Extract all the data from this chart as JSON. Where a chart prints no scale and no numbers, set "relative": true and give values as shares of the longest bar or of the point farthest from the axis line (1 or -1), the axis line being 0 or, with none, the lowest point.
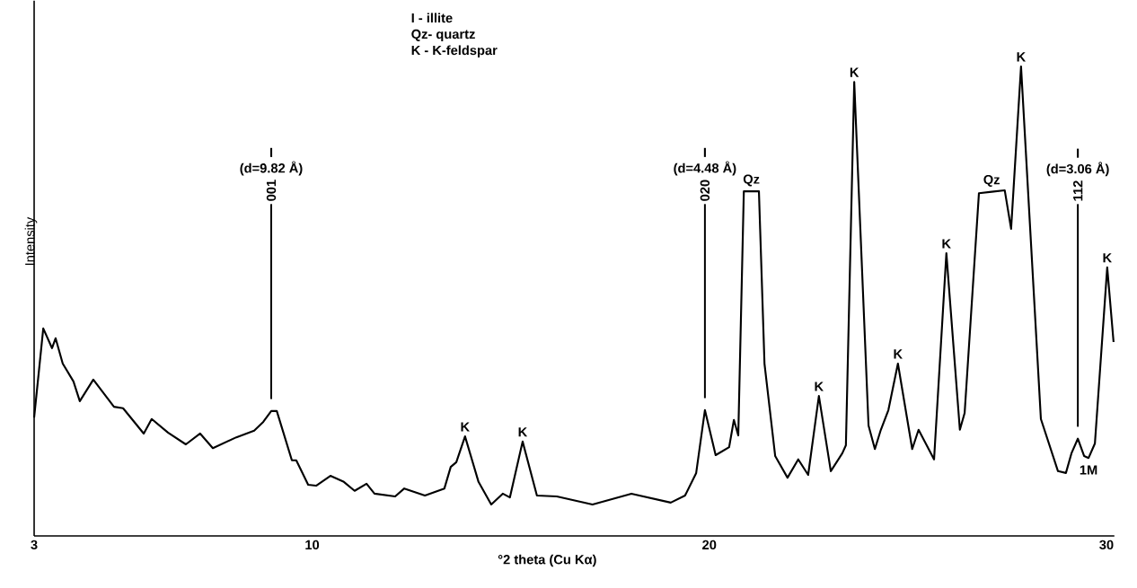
{
  "chart_data": {
    "type": "line",
    "relative": true,
    "xlabel": "°2 theta (Cu Kα)",
    "ylabel": "Intensity",
    "xlim": [
      3,
      30.2
    ],
    "xticks": [
      3,
      10,
      20,
      30
    ],
    "marker": "none",
    "line_style": "solid",
    "x": [
      3.0,
      3.23,
      3.45,
      3.54,
      3.72,
      3.99,
      4.15,
      4.49,
      5.01,
      5.24,
      5.76,
      5.96,
      6.37,
      6.82,
      7.18,
      7.5,
      8.09,
      8.54,
      8.77,
      8.97,
      9.11,
      9.49,
      9.6,
      9.9,
      10.1,
      10.46,
      10.8,
      11.07,
      11.37,
      11.57,
      12.09,
      12.32,
      12.84,
      13.33,
      13.49,
      13.63,
      13.85,
      14.19,
      14.51,
      14.8,
      14.98,
      15.3,
      15.66,
      16.16,
      17.06,
      18.04,
      19.03,
      19.39,
      19.67,
      19.89,
      20.16,
      20.5,
      20.62,
      20.73,
      20.87,
      21.06,
      21.25,
      21.39,
      21.66,
      21.97,
      22.24,
      22.49,
      22.76,
      23.06,
      23.35,
      23.44,
      23.65,
      24.01,
      24.17,
      24.32,
      24.51,
      24.75,
      25.11,
      25.27,
      25.66,
      25.97,
      26.31,
      26.43,
      26.79,
      27.11,
      27.44,
      27.6,
      27.85,
      28.35,
      28.78,
      28.98,
      29.12,
      29.28,
      29.44,
      29.55,
      29.71,
      30.02,
      30.18
    ],
    "series": [
      {
        "color": "#000000",
        "values": [
          0.252,
          0.442,
          0.4,
          0.421,
          0.367,
          0.329,
          0.287,
          0.333,
          0.275,
          0.272,
          0.218,
          0.249,
          0.22,
          0.195,
          0.218,
          0.187,
          0.21,
          0.224,
          0.243,
          0.266,
          0.266,
          0.161,
          0.161,
          0.109,
          0.107,
          0.128,
          0.115,
          0.096,
          0.111,
          0.09,
          0.084,
          0.101,
          0.086,
          0.101,
          0.147,
          0.157,
          0.212,
          0.115,
          0.067,
          0.09,
          0.082,
          0.201,
          0.086,
          0.084,
          0.067,
          0.09,
          0.071,
          0.086,
          0.134,
          0.268,
          0.172,
          0.189,
          0.247,
          0.214,
          0.734,
          0.734,
          0.734,
          0.367,
          0.17,
          0.124,
          0.163,
          0.13,
          0.298,
          0.138,
          0.176,
          0.193,
          0.967,
          0.235,
          0.185,
          0.226,
          0.268,
          0.367,
          0.185,
          0.226,
          0.163,
          0.602,
          0.226,
          0.262,
          0.73,
          0.733,
          0.736,
          0.654,
          1.0,
          0.249,
          0.138,
          0.134,
          0.176,
          0.207,
          0.17,
          0.166,
          0.197,
          0.572,
          0.413
        ]
      }
    ],
    "annotations": [
      {
        "text": "K",
        "x": 13.85,
        "y": 0.212
      },
      {
        "text": "K",
        "x": 15.3,
        "y": 0.201
      },
      {
        "text": "Qz",
        "x": 21.06,
        "y": 0.734
      },
      {
        "text": "K",
        "x": 22.76,
        "y": 0.298
      },
      {
        "text": "K",
        "x": 23.65,
        "y": 0.967
      },
      {
        "text": "K",
        "x": 24.75,
        "y": 0.367
      },
      {
        "text": "K",
        "x": 25.97,
        "y": 0.602
      },
      {
        "text": "Qz",
        "x": 27.11,
        "y": 0.733
      },
      {
        "text": "K",
        "x": 27.85,
        "y": 1.0
      },
      {
        "text": "K",
        "x": 30.02,
        "y": 0.572
      },
      {
        "text": "1M",
        "x": 29.55,
        "y": 0.166
      },
      "I",
      "(d=9.82 Å)",
      "001",
      "I",
      "(d=4.48 Å)",
      "020",
      "I",
      "(d=3.06 Å)",
      "112",
      "I - illite",
      "Qz- quartz",
      "K - K-feldspar"
    ],
    "ref_lines": [
      {
        "axis": "x",
        "value": 8.97
      },
      {
        "axis": "x",
        "value": 19.89
      },
      {
        "axis": "x",
        "value": 29.28
      }
    ]
  }
}
